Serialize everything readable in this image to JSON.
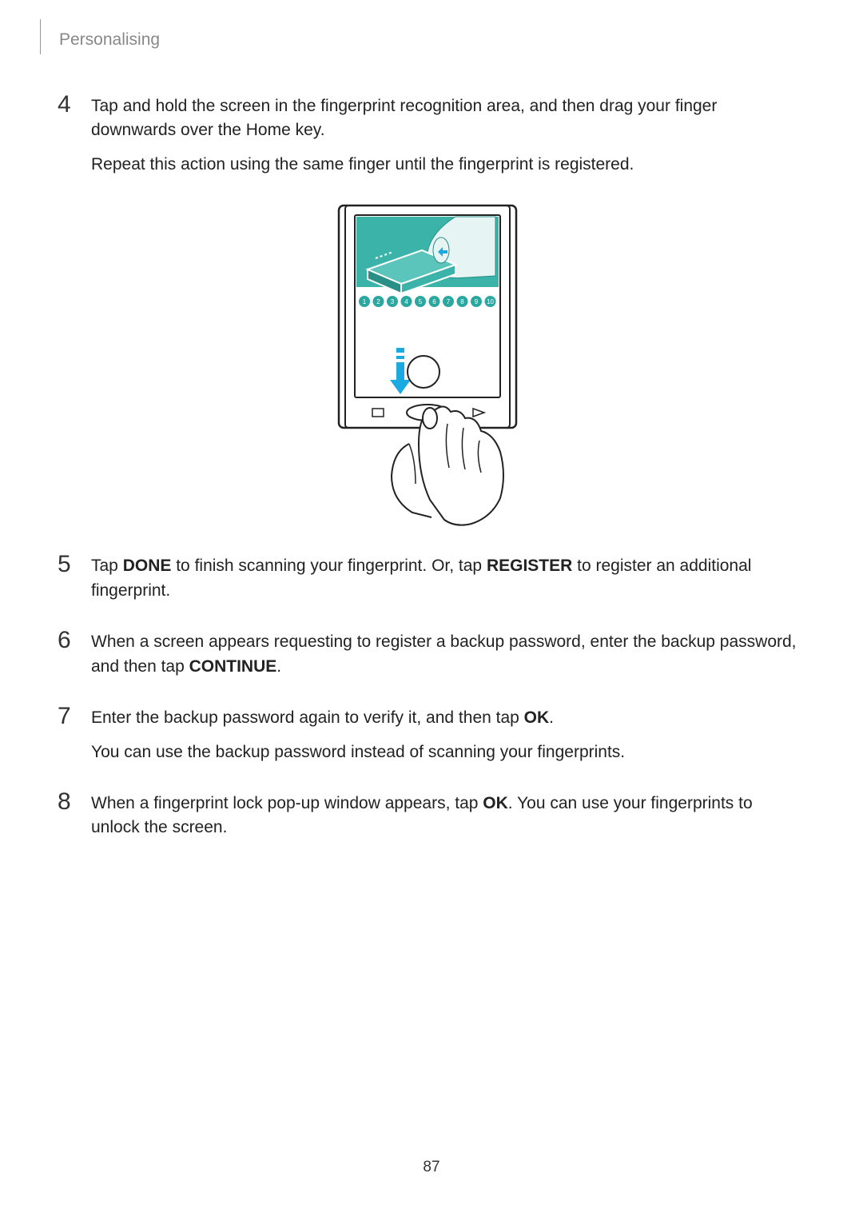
{
  "header": {
    "section_title": "Personalising"
  },
  "steps": {
    "s4": {
      "num": "4",
      "p1a": "Tap and hold the screen in the fingerprint recognition area, and then drag your finger downwards over the Home key.",
      "p2a": "Repeat this action using the same finger until the fingerprint is registered."
    },
    "s5": {
      "num": "5",
      "p1a": "Tap ",
      "p1b": "DONE",
      "p1c": " to finish scanning your fingerprint. Or, tap ",
      "p1d": "REGISTER",
      "p1e": " to register an additional fingerprint."
    },
    "s6": {
      "num": "6",
      "p1a": "When a screen appears requesting to register a backup password, enter the backup password, and then tap ",
      "p1b": "CONTINUE",
      "p1c": "."
    },
    "s7": {
      "num": "7",
      "p1a": "Enter the backup password again to verify it, and then tap ",
      "p1b": "OK",
      "p1c": ".",
      "p2a": "You can use the backup password instead of scanning your fingerprints."
    },
    "s8": {
      "num": "8",
      "p1a": "When a fingerprint lock pop-up window appears, tap ",
      "p1b": "OK",
      "p1c": ". You can use your fingerprints to unlock the screen."
    }
  },
  "figure": {
    "teal": "#3bb3a9",
    "teal_dark": "#2a8f87",
    "arrow_blue": "#1ba9e1",
    "dot_fill": "#2aa8a0",
    "dots": [
      "1",
      "2",
      "3",
      "4",
      "5",
      "6",
      "7",
      "8",
      "9",
      "10"
    ]
  },
  "page_number": "87"
}
